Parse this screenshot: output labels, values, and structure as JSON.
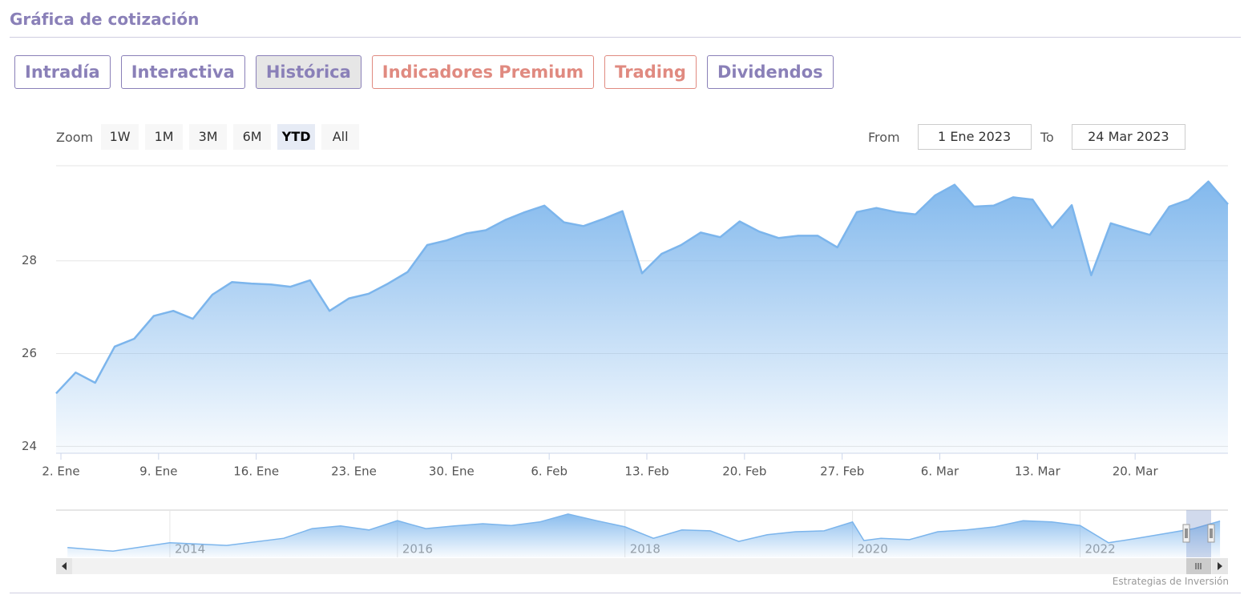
{
  "header": {
    "title": "Gráfica de cotización"
  },
  "tabs": [
    "Intradía",
    "Interactiva",
    "Histórica",
    "Indicadores Premium",
    "Trading",
    "Dividendos"
  ],
  "range_selector": {
    "zoom_label": "Zoom",
    "buttons": [
      "1W",
      "1M",
      "3M",
      "6M",
      "YTD",
      "All"
    ],
    "from_label": "From",
    "from": "1 Ene 2023",
    "to_label": "To",
    "to": "24 Mar 2023"
  },
  "chart_data": {
    "type": "area",
    "color": "#7cb5ec",
    "categories": [
      "2. Ene",
      null,
      null,
      null,
      null,
      "9. Ene",
      null,
      null,
      null,
      null,
      "16. Ene",
      null,
      null,
      null,
      null,
      "23. Ene",
      null,
      null,
      null,
      null,
      "30. Ene",
      null,
      null,
      null,
      null,
      "6. Feb",
      null,
      null,
      null,
      null,
      "13. Feb",
      null,
      null,
      null,
      null,
      "20. Feb",
      null,
      null,
      null,
      null,
      "27. Feb",
      null,
      null,
      null,
      null,
      "6. Mar",
      null,
      null,
      null,
      null,
      "13. Mar",
      null,
      null,
      null,
      null,
      "20. Mar",
      null,
      null,
      null,
      null,
      null
    ],
    "values": [
      25.14,
      25.59,
      25.37,
      26.15,
      26.32,
      26.81,
      26.92,
      26.75,
      27.27,
      27.54,
      27.51,
      27.49,
      27.44,
      27.58,
      26.92,
      27.19,
      27.29,
      27.51,
      27.76,
      28.34,
      28.44,
      28.59,
      28.66,
      28.88,
      29.05,
      29.19,
      28.83,
      28.75,
      28.9,
      29.07,
      27.73,
      28.15,
      28.34,
      28.61,
      28.51,
      28.85,
      28.63,
      28.49,
      28.54,
      28.54,
      28.29,
      29.05,
      29.14,
      29.05,
      29.0,
      29.41,
      29.64,
      29.17,
      29.19,
      29.37,
      29.32,
      28.71,
      29.2,
      27.69,
      28.81,
      28.68,
      28.56,
      29.17,
      29.32,
      29.71,
      29.22
    ],
    "ylim": [
      23.85,
      30.05
    ],
    "yticks": [
      24,
      26,
      28
    ],
    "grid": true
  },
  "navigator": {
    "type": "area",
    "x": [
      2013.1,
      2013.5,
      2014.0,
      2014.5,
      2015.0,
      2015.25,
      2015.5,
      2015.75,
      2016.0,
      2016.25,
      2016.5,
      2016.75,
      2017.0,
      2017.25,
      2017.5,
      2017.75,
      2018.0,
      2018.25,
      2018.5,
      2018.75,
      2019.0,
      2019.25,
      2019.5,
      2019.75,
      2020.0,
      2020.1,
      2020.25,
      2020.5,
      2020.75,
      2021.0,
      2021.25,
      2021.5,
      2021.75,
      2022.0,
      2022.25,
      2022.5,
      2022.75,
      2023.0,
      2023.23
    ],
    "values": [
      23.2,
      22.4,
      24.3,
      23.7,
      25.3,
      27.5,
      28.1,
      27.2,
      29.3,
      27.5,
      28.1,
      28.6,
      28.2,
      29.0,
      30.8,
      29.3,
      27.9,
      25.3,
      27.2,
      27.0,
      24.6,
      26.1,
      26.8,
      27.0,
      29.0,
      24.8,
      25.3,
      25.0,
      26.8,
      27.2,
      27.9,
      29.3,
      29.0,
      28.2,
      24.3,
      25.3,
      26.4,
      27.5,
      29.2
    ],
    "xlim": [
      2013.0,
      2023.3
    ],
    "ylim": [
      21,
      31.5
    ],
    "xticks": [
      2014,
      2016,
      2018,
      2020,
      2022
    ]
  },
  "credits": "Estrategias de Inversión"
}
